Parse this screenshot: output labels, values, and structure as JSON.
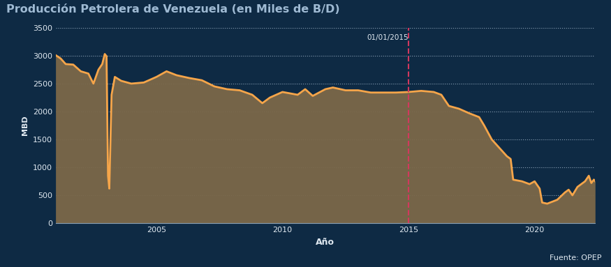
{
  "chart_data": {
    "type": "area",
    "title": "Producción Petrolera de Venezuela (en Miles de B/D)",
    "x_label": "Año",
    "y_label": "MBD",
    "source": "Fuente: OPEP",
    "x": [
      2001.0,
      2001.2,
      2001.4,
      2001.7,
      2002.0,
      2002.3,
      2002.5,
      2002.7,
      2002.85,
      2002.95,
      2003.02,
      2003.08,
      2003.13,
      2003.22,
      2003.35,
      2003.6,
      2004.0,
      2004.5,
      2005.0,
      2005.4,
      2005.8,
      2006.3,
      2006.8,
      2007.3,
      2007.8,
      2008.3,
      2008.8,
      2009.2,
      2009.5,
      2010.0,
      2010.6,
      2010.9,
      2011.2,
      2011.7,
      2012.0,
      2012.5,
      2013.0,
      2013.5,
      2014.0,
      2014.5,
      2015.0,
      2015.5,
      2016.0,
      2016.3,
      2016.6,
      2017.0,
      2017.4,
      2017.8,
      2018.0,
      2018.3,
      2018.6,
      2018.9,
      2019.05,
      2019.15,
      2019.5,
      2019.8,
      2020.0,
      2020.2,
      2020.3,
      2020.5,
      2020.9,
      2021.2,
      2021.35,
      2021.5,
      2021.7,
      2022.0,
      2022.15,
      2022.25,
      2022.35,
      2022.4
    ],
    "series": [
      {
        "name": "MBD",
        "color": "#f5a54a",
        "values": [
          3010,
          2950,
          2850,
          2840,
          2720,
          2680,
          2500,
          2750,
          2850,
          3030,
          2990,
          850,
          620,
          2300,
          2620,
          2550,
          2500,
          2520,
          2620,
          2720,
          2650,
          2600,
          2560,
          2450,
          2400,
          2380,
          2300,
          2150,
          2250,
          2350,
          2300,
          2400,
          2280,
          2400,
          2430,
          2380,
          2380,
          2340,
          2340,
          2340,
          2350,
          2370,
          2350,
          2300,
          2100,
          2050,
          1970,
          1900,
          1750,
          1500,
          1350,
          1200,
          1150,
          780,
          750,
          700,
          750,
          620,
          370,
          350,
          420,
          550,
          600,
          500,
          650,
          750,
          850,
          720,
          780,
          750
        ]
      }
    ],
    "annotations": [
      {
        "x": 2015.0,
        "text": "01/01/2015"
      }
    ],
    "xlim": [
      2001.0,
      2022.4
    ],
    "xticks": [
      2005,
      2010,
      2015,
      2020
    ],
    "ylim": [
      0,
      3500
    ],
    "yticks": [
      0,
      500,
      1000,
      1500,
      2000,
      2500,
      3000,
      3500
    ],
    "grid": true
  }
}
